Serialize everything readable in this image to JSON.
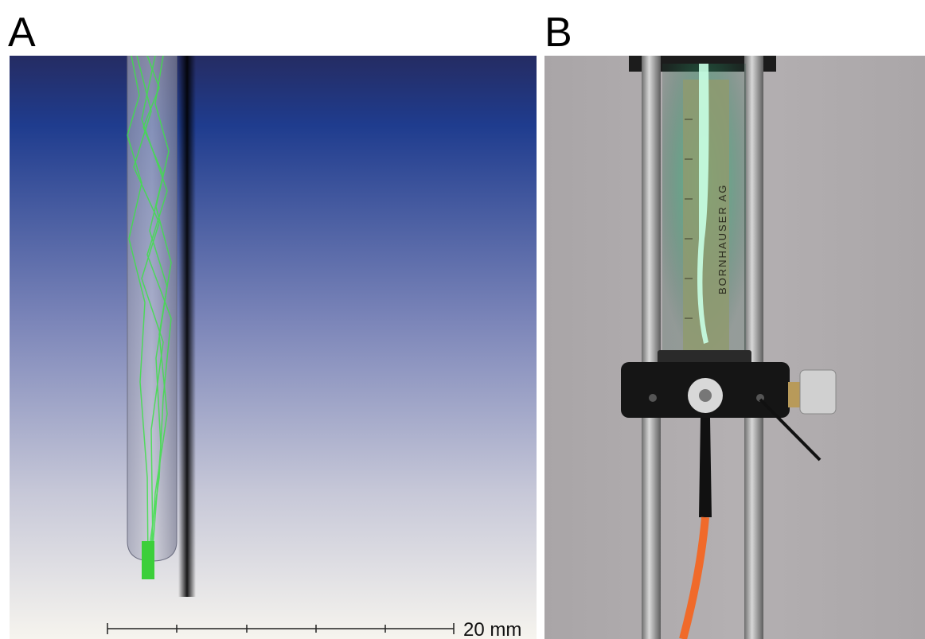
{
  "panels": [
    {
      "label": "A",
      "scale_bar": "20 mm"
    },
    {
      "label": "B",
      "ruler_text": "BORNHAUSER AG"
    }
  ]
}
